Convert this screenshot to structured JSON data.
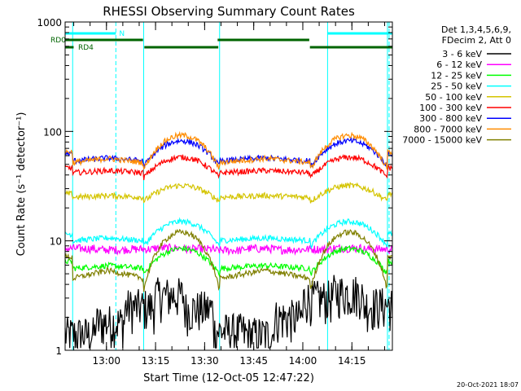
{
  "chart_data": {
    "type": "line",
    "title": "RHESSI Observing Summary Count Rates",
    "xlabel": "Start Time (12-Oct-05 12:47:22)",
    "ylabel": "Count Rate (s⁻¹ detector⁻¹)",
    "y_scale": "log",
    "ylim": [
      1,
      1000
    ],
    "xlim_minutes_after_start": [
      0,
      100
    ],
    "x_tick_labels": [
      "13:00",
      "13:15",
      "13:30",
      "13:45",
      "14:00",
      "14:15"
    ],
    "x_tick_minutes": [
      12.63,
      27.63,
      42.63,
      57.63,
      72.63,
      87.63
    ],
    "y_tick_labels": [
      "1",
      "10",
      "100",
      "1000"
    ],
    "y_tick_values": [
      1,
      10,
      100,
      1000
    ],
    "legend": {
      "position": "top-right",
      "header": [
        "Det 1,3,4,5,6,9,",
        "FDecim 2, Att 0"
      ]
    },
    "series": [
      {
        "name": "3 - 6 keV",
        "color": "#000000",
        "pattern": "low",
        "values": [
          1.4,
          1.8,
          2.5,
          3.2,
          2.4,
          1.5,
          1.4,
          2.0,
          3.0,
          3.4,
          2.6,
          1.6
        ]
      },
      {
        "name": "6 - 12 keV",
        "color": "#ff00ff",
        "pattern": "flat",
        "values": [
          8.5,
          8.3,
          8.4,
          8.6,
          8.4,
          8.2,
          8.5,
          8.3,
          8.4,
          8.6,
          8.4,
          8.2
        ]
      },
      {
        "name": "12 - 25 keV",
        "color": "#00ff00",
        "pattern": "orbit",
        "min": 5.0,
        "max": 8.5
      },
      {
        "name": "25 - 50 keV",
        "color": "#00ffff",
        "pattern": "orbit",
        "min": 9.0,
        "max": 15.0
      },
      {
        "name": "50 - 100 keV",
        "color": "#d4c400",
        "pattern": "orbit",
        "min": 23.0,
        "max": 32.0
      },
      {
        "name": "100 - 300 keV",
        "color": "#ff0000",
        "pattern": "orbit",
        "min": 38.0,
        "max": 58.0,
        "seg_start": 80.0
      },
      {
        "name": "300 - 800 keV",
        "color": "#0000ff",
        "pattern": "orbit",
        "min": 48.0,
        "max": 82.0
      },
      {
        "name": "800 - 7000 keV",
        "color": "#ff8c00",
        "pattern": "orbit",
        "min": 45.0,
        "max": 92.0
      },
      {
        "name": "7000 - 15000 keV",
        "color": "#808000",
        "pattern": "orbit",
        "min": 3.5,
        "max": 12.0
      }
    ],
    "orbit_boundaries_minutes": [
      2.3,
      24.0,
      47.2,
      75.0,
      98.5
    ],
    "annotations": {
      "flags": [
        {
          "label": "N",
          "color": "#00ffff",
          "segments": [
            [
              0,
              15.5
            ],
            [
              80.2,
              100
            ]
          ]
        },
        {
          "label": "RD0",
          "color": "#006400",
          "segments": [
            [
              0,
              23.8
            ],
            [
              46.6,
              74.6
            ]
          ]
        },
        {
          "label": "RD4",
          "color": "#006400",
          "segments": [
            [
              0,
              2.6
            ],
            [
              24.2,
              46.8
            ],
            [
              74.8,
              100
            ]
          ]
        }
      ],
      "vlines_solid_minutes": [
        2.3,
        24.0,
        47.2,
        80.2,
        98.5
      ],
      "vlines_dashed_minutes": [
        15.5,
        99.0
      ]
    },
    "grid": false
  },
  "footer_timestamp": "20-Oct-2021 18:07"
}
